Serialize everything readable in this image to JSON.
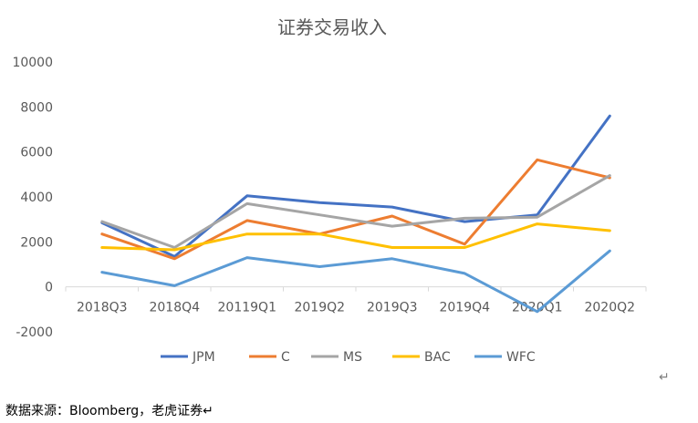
{
  "chart_data": {
    "type": "line",
    "title": "证券交易收入",
    "categories": [
      "2018Q3",
      "2018Q4",
      "20119Q1",
      "2019Q2",
      "2019Q3",
      "2019Q4",
      "2020Q1",
      "2020Q2"
    ],
    "ylim": [
      -2000,
      10000
    ],
    "yticks": [
      -2000,
      0,
      2000,
      4000,
      6000,
      8000,
      10000
    ],
    "grid": false,
    "legend_position": "bottom",
    "series": [
      {
        "name": "JPM",
        "color": "#4472C4",
        "values": [
          2850,
          1350,
          4050,
          3750,
          3550,
          2900,
          3200,
          7600
        ]
      },
      {
        "name": "C",
        "color": "#ED7D31",
        "values": [
          2350,
          1250,
          2950,
          2350,
          3150,
          1900,
          5650,
          4850
        ]
      },
      {
        "name": "MS",
        "color": "#A5A5A5",
        "values": [
          2900,
          1750,
          3700,
          3200,
          2700,
          3050,
          3100,
          4950
        ]
      },
      {
        "name": "BAC",
        "color": "#FFC000",
        "values": [
          1750,
          1650,
          2350,
          2350,
          1750,
          1750,
          2800,
          2500
        ]
      },
      {
        "name": "WFC",
        "color": "#5B9BD5",
        "values": [
          650,
          50,
          1300,
          900,
          1250,
          600,
          -1100,
          1600
        ]
      }
    ]
  },
  "footer": {
    "source": "数据来源：Bloomberg，老虎证券↵",
    "return_mark": "↵"
  }
}
